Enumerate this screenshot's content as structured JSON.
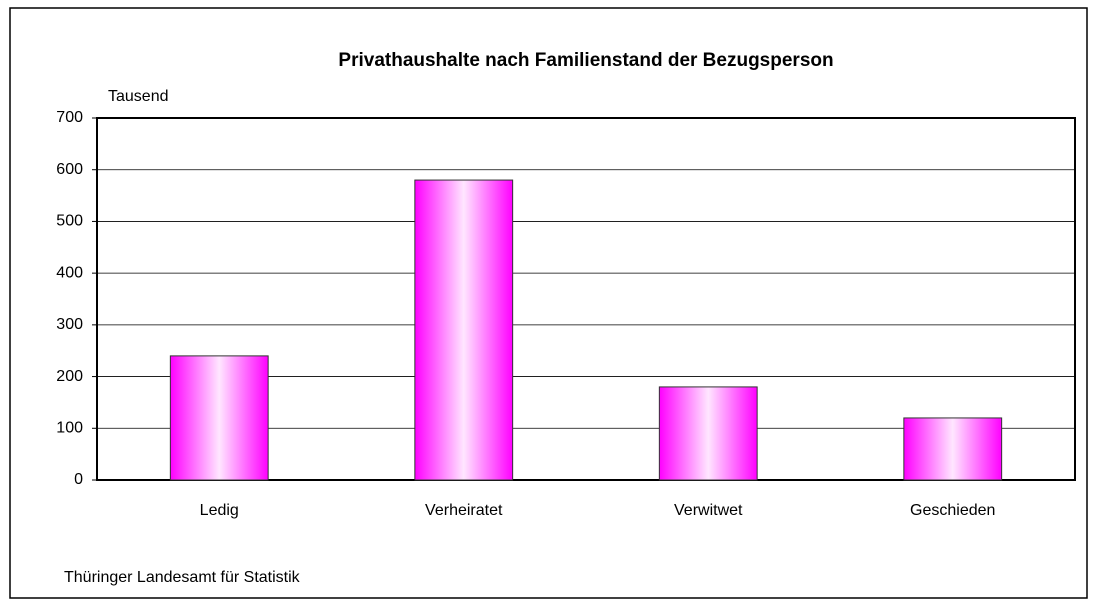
{
  "chart_data": {
    "type": "bar",
    "title": "Privathaushalte nach Familienstand der Bezugsperson",
    "ylabel": "Tausend",
    "categories": [
      "Ledig",
      "Verheiratet",
      "Verwitwet",
      "Geschieden"
    ],
    "values": [
      240,
      580,
      180,
      120
    ],
    "color": "#ff00ff",
    "ylim": [
      0,
      700
    ],
    "yticks": [
      0,
      100,
      200,
      300,
      400,
      500,
      600,
      700
    ],
    "grid": true,
    "source": "Thüringer Landesamt für Statistik"
  }
}
